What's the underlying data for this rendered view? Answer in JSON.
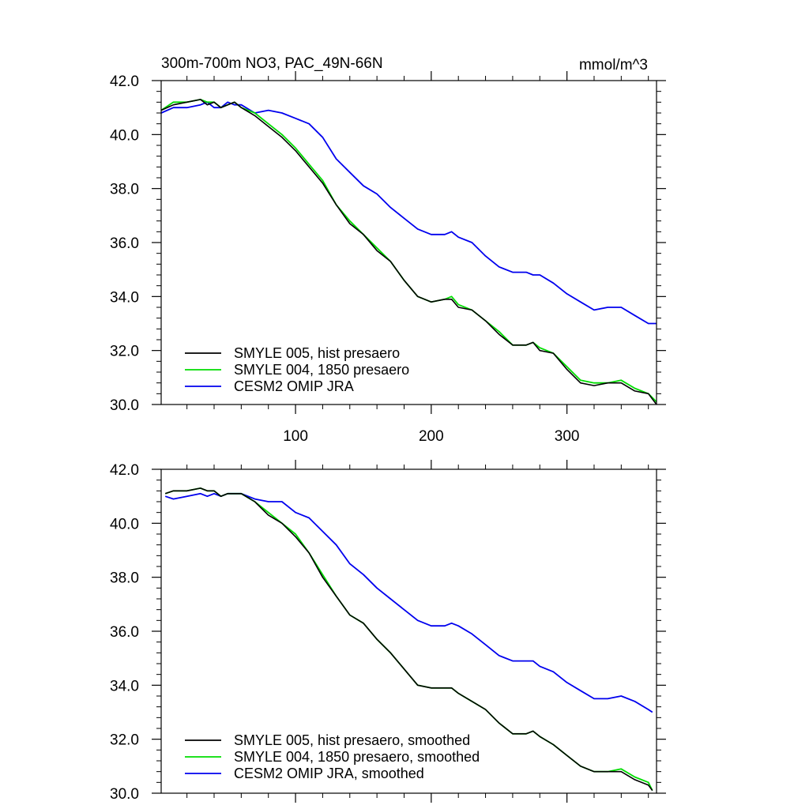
{
  "chart_data": [
    {
      "type": "line",
      "title": "300m-700m NO3, PAC_49N-66N",
      "units": "mmol/m^3",
      "xlim": [
        1,
        366
      ],
      "ylim": [
        30,
        42
      ],
      "x_ticks": [
        100,
        200,
        300
      ],
      "x_tick_labels": [
        "100",
        "200",
        "300"
      ],
      "y_ticks": [
        30,
        32,
        34,
        36,
        38,
        40,
        42
      ],
      "y_tick_labels": [
        "30.0",
        "32.0",
        "34.0",
        "36.0",
        "38.0",
        "40.0",
        "42.0"
      ],
      "legend_position": "bottom-left",
      "series": [
        {
          "name": "SMYLE 005, hist presaero",
          "color": "#000000",
          "x": [
            1,
            10,
            20,
            30,
            35,
            40,
            45,
            50,
            55,
            60,
            70,
            80,
            90,
            100,
            110,
            120,
            130,
            140,
            150,
            160,
            170,
            180,
            190,
            200,
            210,
            215,
            220,
            230,
            240,
            250,
            260,
            270,
            275,
            280,
            290,
            300,
            310,
            320,
            330,
            340,
            350,
            360,
            366
          ],
          "y": [
            40.9,
            41.1,
            41.2,
            41.3,
            41.1,
            41.2,
            41.0,
            41.1,
            41.2,
            41.0,
            40.7,
            40.3,
            39.9,
            39.4,
            38.8,
            38.2,
            37.4,
            36.7,
            36.3,
            35.7,
            35.3,
            34.6,
            34.0,
            33.8,
            33.9,
            33.9,
            33.6,
            33.5,
            33.1,
            32.6,
            32.2,
            32.2,
            32.3,
            32.0,
            31.9,
            31.3,
            30.8,
            30.7,
            30.8,
            30.8,
            30.5,
            30.4,
            30.0
          ]
        },
        {
          "name": "SMYLE 004, 1850 presaero",
          "color": "#00dd00",
          "x": [
            1,
            10,
            20,
            30,
            35,
            40,
            45,
            50,
            55,
            60,
            70,
            80,
            90,
            100,
            110,
            120,
            130,
            140,
            150,
            160,
            170,
            180,
            190,
            200,
            210,
            215,
            220,
            230,
            240,
            250,
            260,
            270,
            275,
            280,
            290,
            300,
            310,
            320,
            330,
            340,
            350,
            360,
            366
          ],
          "y": [
            40.9,
            41.2,
            41.2,
            41.3,
            41.2,
            41.2,
            41.0,
            41.1,
            41.2,
            41.0,
            40.8,
            40.4,
            40.0,
            39.5,
            38.9,
            38.3,
            37.4,
            36.8,
            36.3,
            35.8,
            35.3,
            34.6,
            34.0,
            33.8,
            33.9,
            34.0,
            33.7,
            33.5,
            33.1,
            32.7,
            32.2,
            32.2,
            32.3,
            32.1,
            31.9,
            31.4,
            30.9,
            30.8,
            30.8,
            30.9,
            30.6,
            30.4,
            30.1
          ]
        },
        {
          "name": "CESM2 OMIP JRA",
          "color": "#0000ee",
          "x": [
            1,
            10,
            20,
            30,
            35,
            40,
            45,
            50,
            55,
            60,
            70,
            80,
            90,
            100,
            110,
            120,
            130,
            140,
            150,
            160,
            170,
            180,
            190,
            200,
            210,
            215,
            220,
            230,
            240,
            250,
            260,
            270,
            275,
            280,
            290,
            300,
            310,
            320,
            330,
            340,
            350,
            360,
            366
          ],
          "y": [
            40.8,
            41.0,
            41.0,
            41.1,
            41.2,
            41.0,
            41.0,
            41.2,
            41.1,
            41.1,
            40.8,
            40.9,
            40.8,
            40.6,
            40.4,
            39.9,
            39.1,
            38.6,
            38.1,
            37.8,
            37.3,
            36.9,
            36.5,
            36.3,
            36.3,
            36.4,
            36.2,
            36.0,
            35.5,
            35.1,
            34.9,
            34.9,
            34.8,
            34.8,
            34.5,
            34.1,
            33.8,
            33.5,
            33.6,
            33.6,
            33.3,
            33.0,
            33.0
          ]
        }
      ],
      "legend": [
        "SMYLE 005, hist presaero",
        "SMYLE 004, 1850 presaero",
        "CESM2 OMIP JRA"
      ]
    },
    {
      "type": "line",
      "title": "",
      "xlim": [
        1,
        366
      ],
      "ylim": [
        30,
        42
      ],
      "x_ticks": [
        100,
        200,
        300
      ],
      "y_ticks": [
        30,
        32,
        34,
        36,
        38,
        40,
        42
      ],
      "y_tick_labels": [
        "30.0",
        "32.0",
        "34.0",
        "36.0",
        "38.0",
        "40.0",
        "42.0"
      ],
      "legend_position": "bottom-left",
      "series": [
        {
          "name": "SMYLE 005, hist presaero, smoothed",
          "color": "#000000",
          "x": [
            4,
            10,
            20,
            30,
            35,
            40,
            45,
            50,
            60,
            70,
            80,
            90,
            100,
            110,
            120,
            130,
            140,
            150,
            160,
            170,
            180,
            190,
            200,
            210,
            215,
            220,
            230,
            240,
            250,
            260,
            270,
            275,
            280,
            290,
            300,
            310,
            320,
            330,
            340,
            350,
            360,
            363
          ],
          "y": [
            41.1,
            41.2,
            41.2,
            41.3,
            41.2,
            41.2,
            41.0,
            41.1,
            41.1,
            40.8,
            40.3,
            40.0,
            39.5,
            38.9,
            38.0,
            37.3,
            36.6,
            36.3,
            35.7,
            35.2,
            34.6,
            34.0,
            33.9,
            33.9,
            33.9,
            33.7,
            33.4,
            33.1,
            32.6,
            32.2,
            32.2,
            32.3,
            32.1,
            31.8,
            31.4,
            31.0,
            30.8,
            30.8,
            30.8,
            30.5,
            30.3,
            30.1
          ]
        },
        {
          "name": "SMYLE 004, 1850 presaero, smoothed",
          "color": "#00dd00",
          "x": [
            4,
            10,
            20,
            30,
            35,
            40,
            45,
            50,
            60,
            70,
            80,
            90,
            100,
            110,
            120,
            130,
            140,
            150,
            160,
            170,
            180,
            190,
            200,
            210,
            215,
            220,
            230,
            240,
            250,
            260,
            270,
            275,
            280,
            290,
            300,
            310,
            320,
            330,
            340,
            350,
            360,
            363
          ],
          "y": [
            41.1,
            41.2,
            41.2,
            41.3,
            41.2,
            41.2,
            41.0,
            41.1,
            41.1,
            40.8,
            40.4,
            40.0,
            39.6,
            38.9,
            38.1,
            37.3,
            36.6,
            36.3,
            35.7,
            35.2,
            34.6,
            34.0,
            33.9,
            33.9,
            33.9,
            33.7,
            33.4,
            33.1,
            32.6,
            32.2,
            32.2,
            32.3,
            32.1,
            31.8,
            31.4,
            31.0,
            30.8,
            30.8,
            30.9,
            30.6,
            30.4,
            30.1
          ]
        },
        {
          "name": "CESM2 OMIP JRA, smoothed",
          "color": "#0000ee",
          "x": [
            4,
            10,
            20,
            30,
            35,
            40,
            45,
            50,
            60,
            70,
            80,
            90,
            100,
            110,
            120,
            130,
            140,
            150,
            160,
            170,
            180,
            190,
            200,
            210,
            215,
            220,
            230,
            240,
            250,
            260,
            270,
            275,
            280,
            290,
            300,
            310,
            320,
            330,
            340,
            350,
            360,
            363
          ],
          "y": [
            41.0,
            40.9,
            41.0,
            41.1,
            41.0,
            41.1,
            41.0,
            41.1,
            41.1,
            40.9,
            40.8,
            40.8,
            40.4,
            40.2,
            39.7,
            39.2,
            38.5,
            38.1,
            37.6,
            37.2,
            36.8,
            36.4,
            36.2,
            36.2,
            36.3,
            36.2,
            35.9,
            35.5,
            35.1,
            34.9,
            34.9,
            34.9,
            34.7,
            34.5,
            34.1,
            33.8,
            33.5,
            33.5,
            33.6,
            33.4,
            33.1,
            33.0
          ]
        }
      ],
      "legend": [
        "SMYLE 005, hist presaero, smoothed",
        "SMYLE 004, 1850 presaero, smoothed",
        "CESM2 OMIP JRA, smoothed"
      ]
    }
  ]
}
